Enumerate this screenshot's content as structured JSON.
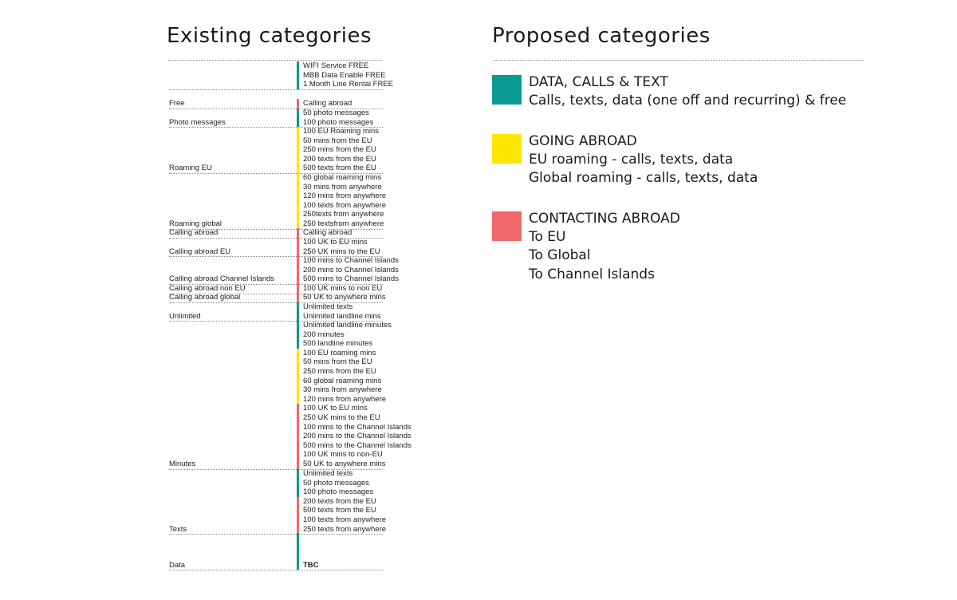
{
  "existing": {
    "title": "Existing categories",
    "groups": [
      {
        "category": "",
        "color": "#0a9a94",
        "items": [
          "WIFI Service FREE",
          "MBB Data Enable FREE",
          "1 Month Line Rental FREE"
        ]
      },
      {
        "category": "Free",
        "color": "#f0696c",
        "items": [
          "Calling abroad"
        ]
      },
      {
        "category": "Photo messages",
        "color": "#0a9a94",
        "items": [
          "50 photo messages",
          "100 photo messages"
        ]
      },
      {
        "category": "Roaming EU",
        "color": "#fde600",
        "items": [
          "100 EU Roaming mins",
          "50 mins from the EU",
          "250 mins from the EU",
          "200 texts from the EU",
          "500 texts from the EU"
        ]
      },
      {
        "category": "Roaming global",
        "color": "#fde600",
        "items": [
          "60 global roaming mins",
          "30 mins from anywhere",
          "120 mins from anywhere",
          "100 texts from anywhere",
          "250texts from anywhere",
          "250 textsfrom anywhere"
        ]
      },
      {
        "category": "Calling abroad",
        "color": "#f0696c",
        "items": [
          "Calling abroad"
        ]
      },
      {
        "category": "Calling abroad EU",
        "color": "#f0696c",
        "items": [
          "100 UK to EU mins",
          "250 UK mins to the EU"
        ]
      },
      {
        "category": "Calling abroad Channel Islands",
        "color": "#f0696c",
        "items": [
          "100 mins to Channel Islands",
          "200 mins to Channel Islands",
          "500 mins to Channel Islands"
        ]
      },
      {
        "category": "Calling abroad non EU",
        "color": "#f0696c",
        "items": [
          "100 UK mins to non EU"
        ]
      },
      {
        "category": "Calling abroad global",
        "color": "#f0696c",
        "items": [
          "50 UK to anywhere mins"
        ]
      },
      {
        "category": "Unlimited",
        "color": "#0a9a94",
        "items": [
          "Unlimited texts",
          "Unlimited landline mins"
        ]
      },
      {
        "category": "Minutes",
        "color": "#0a9a94",
        "segments": [
          {
            "color": "#0a9a94",
            "items": [
              "Unlimited landline minutes",
              "200 minutes",
              "500 landline minutes"
            ]
          },
          {
            "color": "#fde600",
            "items": [
              "100 EU roaming mins",
              "50 mins from the EU",
              "250 mins from the EU",
              "60 global roaming mins",
              "30 mins from anywhere",
              "120 mins from anywhere"
            ]
          },
          {
            "color": "#f0696c",
            "items": [
              "100 UK to EU mins",
              "250 UK mins to the EU",
              "100 mins to the Channel Islands",
              "200 mins to the Channel Islands",
              "500 mins to the Channel Islands",
              "100 UK mins to non-EU",
              "50 UK to anywhere mins"
            ]
          }
        ]
      },
      {
        "category": "Texts",
        "color": "#0a9a94",
        "segments": [
          {
            "color": "#0a9a94",
            "items": [
              "Unlimited texts",
              "50 photo messages",
              "100 photo messages"
            ]
          },
          {
            "color": "#f0696c",
            "items": [
              "200 texts from the EU",
              "500 texts from the EU",
              "100 texts from anywhere",
              "250 texts from anywhere"
            ]
          }
        ]
      },
      {
        "category": "Data",
        "color": "#0a9a94",
        "items": [
          "TBC"
        ]
      }
    ]
  },
  "proposed": {
    "title": "Proposed categories",
    "groups": [
      {
        "color": "#0a9a94",
        "lines": [
          "DATA, CALLS & TEXT",
          "Calls, texts, data (one off and recurring) & free"
        ]
      },
      {
        "color": "#fde600",
        "lines": [
          "GOING ABROAD",
          "EU roaming - calls, texts, data",
          "Global roaming - calls, texts, data"
        ]
      },
      {
        "color": "#f0696c",
        "lines": [
          "CONTACTING ABROAD",
          "To EU",
          "To Global",
          "To Channel Islands"
        ]
      }
    ]
  }
}
